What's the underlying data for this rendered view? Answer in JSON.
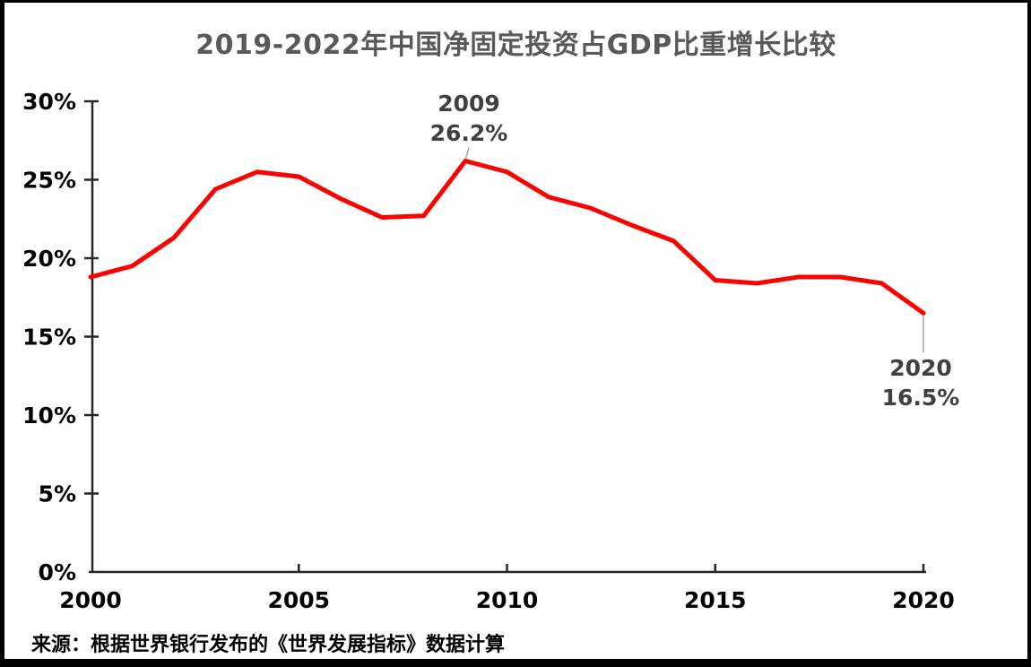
{
  "title": "2019-2022年中国净固定投资占GDP比重增长比较",
  "source_note": "来源：根据世界银行发布的《世界发展指标》数据计算",
  "colors": {
    "line": "#fe0000",
    "title_text": "#595959",
    "axis_line": "#262626",
    "axis_text": "#000000",
    "annotation_text": "#404040",
    "leader_line": "#a6a6a6",
    "background": "#ffffff",
    "border": "#000000"
  },
  "chart_data": {
    "type": "line",
    "x": [
      2000,
      2001,
      2002,
      2003,
      2004,
      2005,
      2006,
      2007,
      2008,
      2009,
      2010,
      2011,
      2012,
      2013,
      2014,
      2015,
      2016,
      2017,
      2018,
      2019,
      2020
    ],
    "series": [
      {
        "name": "净固定投资占GDP比重",
        "values": [
          18.8,
          19.5,
          21.3,
          24.4,
          25.5,
          25.2,
          23.8,
          22.6,
          22.7,
          26.2,
          25.5,
          23.9,
          23.2,
          22.1,
          21.1,
          18.6,
          18.4,
          18.8,
          18.8,
          18.4,
          16.5
        ]
      }
    ],
    "title": "2019-2022年中国净固定投资占GDP比重增长比较",
    "xlabel": "",
    "ylabel": "",
    "xlim": [
      2000,
      2020
    ],
    "ylim": [
      0,
      30
    ],
    "grid": false,
    "legend_position": "none",
    "xtick_labels": [
      "2000",
      "2005",
      "2010",
      "2015",
      "2020"
    ],
    "xtick_years": [
      2000,
      2005,
      2010,
      2015,
      2020
    ],
    "ytick_labels": [
      "0%",
      "5%",
      "10%",
      "15%",
      "20%",
      "25%",
      "30%"
    ],
    "ytick_values": [
      0,
      5,
      10,
      15,
      20,
      25,
      30
    ],
    "annotations": [
      {
        "year": 2009,
        "value": 26.2,
        "line1": "2009",
        "line2": "26.2%",
        "position": "above"
      },
      {
        "year": 2020,
        "value": 16.5,
        "line1": "2020",
        "line2": "16.5%",
        "position": "below"
      }
    ]
  }
}
